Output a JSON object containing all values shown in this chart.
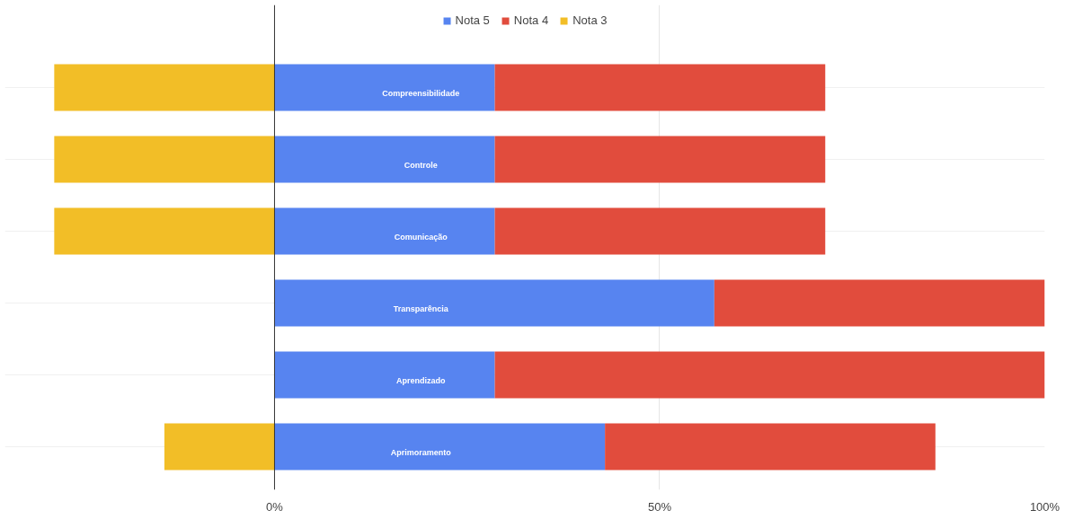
{
  "chart_data": {
    "type": "bar",
    "orientation": "horizontal",
    "stacked": true,
    "categories": [
      "Compreensibilidade",
      "Controle",
      "Comunicação",
      "Transparência",
      "Aprendizado",
      "Aprimoramento"
    ],
    "series": [
      {
        "name": "Nota 5",
        "color": "#5784f0",
        "values": [
          28.6,
          28.6,
          28.6,
          57.1,
          28.6,
          42.9
        ]
      },
      {
        "name": "Nota 4",
        "color": "#e14c3d",
        "values": [
          42.9,
          42.9,
          42.9,
          42.9,
          71.4,
          42.9
        ]
      },
      {
        "name": "Nota 3",
        "color": "#f2be27",
        "values": [
          -28.6,
          -28.6,
          -28.6,
          0,
          0,
          -14.3
        ]
      }
    ],
    "xlim": [
      -35,
      100
    ],
    "xticks": [
      {
        "value": 0,
        "label": "0%"
      },
      {
        "value": 50,
        "label": "50%"
      },
      {
        "value": 100,
        "label": "100%"
      }
    ],
    "grid": true,
    "legend": "top",
    "ref_lines": [
      {
        "axis": "x",
        "value": 0,
        "color": "#333333"
      }
    ]
  }
}
